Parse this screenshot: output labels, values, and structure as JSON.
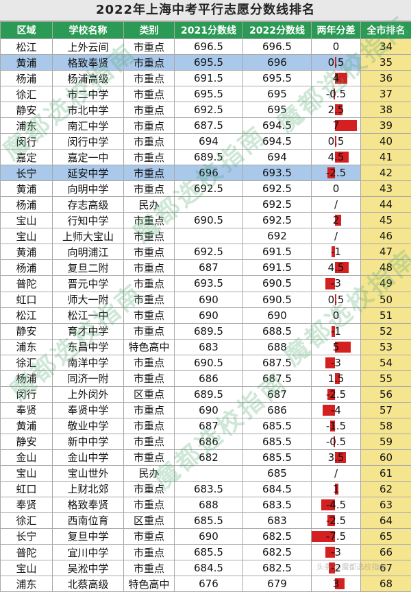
{
  "title": "2022年上海中考平行志愿分数线排名",
  "headers": [
    "区域",
    "学校名称",
    "类别",
    "2021分数线",
    "2022分数线",
    "两年分差",
    "全市排名"
  ],
  "rows": [
    {
      "district": "松江",
      "school": "上外云间",
      "type": "市重点",
      "s2021": "696.5",
      "s2022": "696.5",
      "diff": "0",
      "diff_value": 0,
      "rank": "34"
    },
    {
      "district": "黄浦",
      "school": "格致奉贤",
      "type": "市重点",
      "s2021": "695.5",
      "s2022": "696",
      "diff": "0.5",
      "diff_value": 0.5,
      "rank": "35",
      "highlight": true
    },
    {
      "district": "杨浦",
      "school": "杨浦高级",
      "type": "市重点",
      "s2021": "691.5",
      "s2022": "695.5",
      "diff": "4",
      "diff_value": 4,
      "rank": "36"
    },
    {
      "district": "徐汇",
      "school": "市二中学",
      "type": "市重点",
      "s2021": "695.5",
      "s2022": "695",
      "diff": "-0.5",
      "diff_value": -0.5,
      "rank": "37"
    },
    {
      "district": "静安",
      "school": "市北中学",
      "type": "市重点",
      "s2021": "692.5",
      "s2022": "695",
      "diff": "2.5",
      "diff_value": 2.5,
      "rank": "38"
    },
    {
      "district": "浦东",
      "school": "南汇中学",
      "type": "市重点",
      "s2021": "687.5",
      "s2022": "694.5",
      "diff": "7",
      "diff_value": 7,
      "rank": "39"
    },
    {
      "district": "闵行",
      "school": "闵行中学",
      "type": "市重点",
      "s2021": "694",
      "s2022": "694.5",
      "diff": "0.5",
      "diff_value": 0.5,
      "rank": "40"
    },
    {
      "district": "嘉定",
      "school": "嘉定一中",
      "type": "市重点",
      "s2021": "689.5",
      "s2022": "694",
      "diff": "4.5",
      "diff_value": 4.5,
      "rank": "41"
    },
    {
      "district": "长宁",
      "school": "延安中学",
      "type": "市重点",
      "s2021": "696",
      "s2022": "693.5",
      "diff": "-2.5",
      "diff_value": -2.5,
      "rank": "42",
      "highlight": true
    },
    {
      "district": "黄浦",
      "school": "向明中学",
      "type": "市重点",
      "s2021": "692.5",
      "s2022": "692.5",
      "diff": "0",
      "diff_value": 0,
      "rank": "43"
    },
    {
      "district": "杨浦",
      "school": "存志高级",
      "type": "民办",
      "s2021": "",
      "s2022": "692.5",
      "diff": "/",
      "diff_value": null,
      "rank": "44"
    },
    {
      "district": "宝山",
      "school": "行知中学",
      "type": "市重点",
      "s2021": "690.5",
      "s2022": "692.5",
      "diff": "2",
      "diff_value": 2,
      "rank": "45"
    },
    {
      "district": "宝山",
      "school": "上师大宝山",
      "type": "市重点",
      "s2021": "",
      "s2022": "692",
      "diff": "/",
      "diff_value": null,
      "rank": "46"
    },
    {
      "district": "黄浦",
      "school": "向明浦江",
      "type": "市重点",
      "s2021": "692.5",
      "s2022": "691.5",
      "diff": "-1",
      "diff_value": -1,
      "rank": "47"
    },
    {
      "district": "杨浦",
      "school": "复旦二附",
      "type": "市重点",
      "s2021": "687",
      "s2022": "691.5",
      "diff": "4.5",
      "diff_value": 4.5,
      "rank": "48"
    },
    {
      "district": "普陀",
      "school": "晋元中学",
      "type": "市重点",
      "s2021": "693.5",
      "s2022": "690.5",
      "diff": "-3",
      "diff_value": -3,
      "rank": "49"
    },
    {
      "district": "虹口",
      "school": "师大一附",
      "type": "市重点",
      "s2021": "690",
      "s2022": "690.5",
      "diff": "0.5",
      "diff_value": 0.5,
      "rank": "50"
    },
    {
      "district": "松江",
      "school": "松江一中",
      "type": "市重点",
      "s2021": "690",
      "s2022": "690",
      "diff": "0",
      "diff_value": 0,
      "rank": "51"
    },
    {
      "district": "静安",
      "school": "育才中学",
      "type": "市重点",
      "s2021": "689.5",
      "s2022": "688.5",
      "diff": "-1",
      "diff_value": -1,
      "rank": "52"
    },
    {
      "district": "浦东",
      "school": "东昌中学",
      "type": "特色高中",
      "s2021": "683",
      "s2022": "688",
      "diff": "5",
      "diff_value": 5,
      "rank": "53"
    },
    {
      "district": "徐汇",
      "school": "南洋中学",
      "type": "市重点",
      "s2021": "690.5",
      "s2022": "687.5",
      "diff": "-3",
      "diff_value": -3,
      "rank": "54"
    },
    {
      "district": "杨浦",
      "school": "同济一附",
      "type": "市重点",
      "s2021": "686",
      "s2022": "687.5",
      "diff": "1.5",
      "diff_value": 1.5,
      "rank": "55"
    },
    {
      "district": "闵行",
      "school": "上外闵外",
      "type": "区重点",
      "s2021": "689.5",
      "s2022": "687",
      "diff": "-2.5",
      "diff_value": -2.5,
      "rank": "56"
    },
    {
      "district": "奉贤",
      "school": "奉贤中学",
      "type": "市重点",
      "s2021": "690",
      "s2022": "686",
      "diff": "-4",
      "diff_value": -4,
      "rank": "57"
    },
    {
      "district": "黄浦",
      "school": "敬业中学",
      "type": "市重点",
      "s2021": "687",
      "s2022": "685.5",
      "diff": "-1.5",
      "diff_value": -1.5,
      "rank": "58"
    },
    {
      "district": "静安",
      "school": "新中中学",
      "type": "市重点",
      "s2021": "686",
      "s2022": "685.5",
      "diff": "-0.5",
      "diff_value": -0.5,
      "rank": "59"
    },
    {
      "district": "金山",
      "school": "金山中学",
      "type": "市重点",
      "s2021": "682",
      "s2022": "685.5",
      "diff": "3.5",
      "diff_value": 3.5,
      "rank": "60"
    },
    {
      "district": "宝山",
      "school": "宝山世外",
      "type": "民办",
      "s2021": "",
      "s2022": "685",
      "diff": "/",
      "diff_value": null,
      "rank": "61"
    },
    {
      "district": "虹口",
      "school": "上财北郊",
      "type": "市重点",
      "s2021": "683.5",
      "s2022": "684.5",
      "diff": "1",
      "diff_value": 1,
      "rank": "62"
    },
    {
      "district": "奉贤",
      "school": "格致奉贤",
      "type": "市重点",
      "s2021": "688",
      "s2022": "683.5",
      "diff": "-4.5",
      "diff_value": -4.5,
      "rank": "63"
    },
    {
      "district": "徐汇",
      "school": "西南位育",
      "type": "区重点",
      "s2021": "685.5",
      "s2022": "683",
      "diff": "-2.5",
      "diff_value": -2.5,
      "rank": "64"
    },
    {
      "district": "长宁",
      "school": "复旦中学",
      "type": "市重点",
      "s2021": "690",
      "s2022": "682.5",
      "diff": "-7.5",
      "diff_value": -7.5,
      "rank": "65"
    },
    {
      "district": "普陀",
      "school": "宜川中学",
      "type": "市重点",
      "s2021": "685.5",
      "s2022": "682.5",
      "diff": "-3",
      "diff_value": -3,
      "rank": "66"
    },
    {
      "district": "宝山",
      "school": "吴淞中学",
      "type": "市重点",
      "s2021": "684.5",
      "s2022": "682.5",
      "diff": "-2",
      "diff_value": -2,
      "rank": "67"
    },
    {
      "district": "浦东",
      "school": "北蔡高级",
      "type": "特色高中",
      "s2021": "676",
      "s2022": "679",
      "diff": "3",
      "diff_value": 3,
      "rank": "68"
    }
  ],
  "watermarks": [
    "魔都选校指南",
    "魔都选校指南",
    "魔都选校指南",
    "魔都选校指南",
    "魔都选校指南",
    "魔都选校指南"
  ],
  "corner_watermark": "头条 @魔都选校指南",
  "colors": {
    "header_bg": "#2a9a55",
    "rank_bg": "#f6e58f",
    "highlight_bg": "#a9c8ea",
    "bar": "#d42020"
  }
}
